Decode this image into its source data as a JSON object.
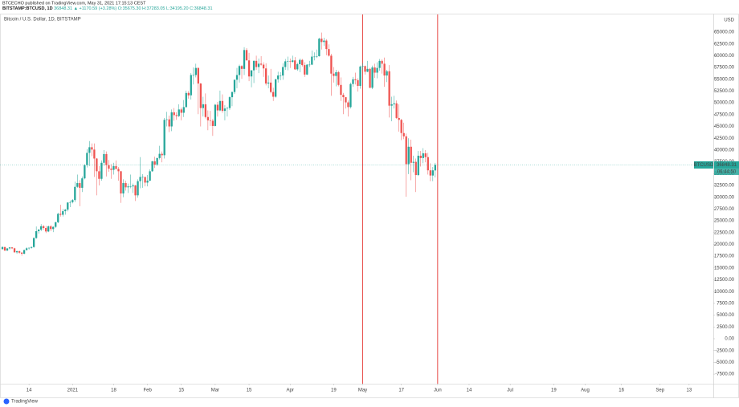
{
  "header": {
    "published": "BTCECHO published on TradingView.com, May 31, 2021 17:15:13 CEST",
    "symbol": "BITSTAMP:BTCUSD, 1D",
    "last": "36848.31",
    "arrow": "▲",
    "change": "+1170.59 (+3.28%)",
    "ohlc": "O:35675.30 H:37283.05 L:34195.20 C:36848.31"
  },
  "footer": {
    "brand": "TradingView"
  },
  "chart_data": {
    "type": "candlestick",
    "title": "Bitcoin / U.S. Dollar, 1D, BITSTAMP",
    "y_axis_unit": "USD",
    "up_color": "#26a69a",
    "down_color": "#ef5350",
    "price_label": {
      "symbol": "BTCUSD",
      "countdown": "06:44:50",
      "color": "#26a69a"
    },
    "vlines": {
      "x": [
        "2021-05-01",
        "2021-06-01"
      ],
      "color": "#e53935"
    },
    "x": [
      "2020-12-03",
      "2020-12-04",
      "2020-12-05",
      "2020-12-06",
      "2020-12-07",
      "2020-12-08",
      "2020-12-09",
      "2020-12-10",
      "2020-12-11",
      "2020-12-12",
      "2020-12-13",
      "2020-12-14",
      "2020-12-15",
      "2020-12-16",
      "2020-12-17",
      "2020-12-18",
      "2020-12-19",
      "2020-12-20",
      "2020-12-21",
      "2020-12-22",
      "2020-12-23",
      "2020-12-24",
      "2020-12-25",
      "2020-12-26",
      "2020-12-27",
      "2020-12-28",
      "2020-12-29",
      "2020-12-30",
      "2020-12-31",
      "2021-01-01",
      "2021-01-02",
      "2021-01-03",
      "2021-01-04",
      "2021-01-05",
      "2021-01-06",
      "2021-01-07",
      "2021-01-08",
      "2021-01-09",
      "2021-01-10",
      "2021-01-11",
      "2021-01-12",
      "2021-01-13",
      "2021-01-14",
      "2021-01-15",
      "2021-01-16",
      "2021-01-17",
      "2021-01-18",
      "2021-01-19",
      "2021-01-20",
      "2021-01-21",
      "2021-01-22",
      "2021-01-23",
      "2021-01-24",
      "2021-01-25",
      "2021-01-26",
      "2021-01-27",
      "2021-01-28",
      "2021-01-29",
      "2021-01-30",
      "2021-01-31",
      "2021-02-01",
      "2021-02-02",
      "2021-02-03",
      "2021-02-04",
      "2021-02-05",
      "2021-02-06",
      "2021-02-07",
      "2021-02-08",
      "2021-02-09",
      "2021-02-10",
      "2021-02-11",
      "2021-02-12",
      "2021-02-13",
      "2021-02-14",
      "2021-02-15",
      "2021-02-16",
      "2021-02-17",
      "2021-02-18",
      "2021-02-19",
      "2021-02-20",
      "2021-02-21",
      "2021-02-22",
      "2021-02-23",
      "2021-02-24",
      "2021-02-25",
      "2021-02-26",
      "2021-02-27",
      "2021-02-28",
      "2021-03-01",
      "2021-03-02",
      "2021-03-03",
      "2021-03-04",
      "2021-03-05",
      "2021-03-06",
      "2021-03-07",
      "2021-03-08",
      "2021-03-09",
      "2021-03-10",
      "2021-03-11",
      "2021-03-12",
      "2021-03-13",
      "2021-03-14",
      "2021-03-15",
      "2021-03-16",
      "2021-03-17",
      "2021-03-18",
      "2021-03-19",
      "2021-03-20",
      "2021-03-21",
      "2021-03-22",
      "2021-03-23",
      "2021-03-24",
      "2021-03-25",
      "2021-03-26",
      "2021-03-27",
      "2021-03-28",
      "2021-03-29",
      "2021-03-30",
      "2021-03-31",
      "2021-04-01",
      "2021-04-02",
      "2021-04-03",
      "2021-04-04",
      "2021-04-05",
      "2021-04-06",
      "2021-04-07",
      "2021-04-08",
      "2021-04-09",
      "2021-04-10",
      "2021-04-11",
      "2021-04-12",
      "2021-04-13",
      "2021-04-14",
      "2021-04-15",
      "2021-04-16",
      "2021-04-17",
      "2021-04-18",
      "2021-04-19",
      "2021-04-20",
      "2021-04-21",
      "2021-04-22",
      "2021-04-23",
      "2021-04-24",
      "2021-04-25",
      "2021-04-26",
      "2021-04-27",
      "2021-04-28",
      "2021-04-29",
      "2021-04-30",
      "2021-05-01",
      "2021-05-02",
      "2021-05-03",
      "2021-05-04",
      "2021-05-05",
      "2021-05-06",
      "2021-05-07",
      "2021-05-08",
      "2021-05-09",
      "2021-05-10",
      "2021-05-11",
      "2021-05-12",
      "2021-05-13",
      "2021-05-14",
      "2021-05-15",
      "2021-05-16",
      "2021-05-17",
      "2021-05-18",
      "2021-05-19",
      "2021-05-20",
      "2021-05-21",
      "2021-05-22",
      "2021-05-23",
      "2021-05-24",
      "2021-05-25",
      "2021-05-26",
      "2021-05-27",
      "2021-05-28",
      "2021-05-29",
      "2021-05-30",
      "2021-05-31"
    ],
    "open": [
      19000,
      19440,
      18700,
      19150,
      19360,
      19170,
      18320,
      18550,
      18250,
      18030,
      18800,
      19170,
      19270,
      19440,
      21350,
      22800,
      23130,
      23850,
      23480,
      22740,
      23820,
      23250,
      23720,
      24700,
      26480,
      26280,
      27040,
      27370,
      28880,
      28950,
      29400,
      32200,
      33000,
      32000,
      34000,
      36800,
      39400,
      40600,
      40100,
      38200,
      35500,
      33900,
      37300,
      39150,
      36800,
      36050,
      35800,
      36600,
      36000,
      35500,
      30800,
      33000,
      32100,
      32300,
      32300,
      32500,
      30400,
      33400,
      34300,
      34300,
      33100,
      33500,
      35500,
      37600,
      36900,
      38300,
      39200,
      38900,
      46400,
      46500,
      45000,
      48000,
      47400,
      47200,
      48600,
      47900,
      49100,
      52100,
      51600,
      55900,
      55900,
      57400,
      54100,
      48900,
      49700,
      47000,
      46300,
      46200,
      45100,
      49600,
      48400,
      50400,
      48300,
      48800,
      48900,
      51200,
      52300,
      54900,
      55900,
      57800,
      57200,
      61200,
      59000,
      55600,
      56900,
      58900,
      57600,
      58300,
      58100,
      57300,
      54100,
      54300,
      52300,
      51300,
      55000,
      55800,
      55800,
      57600,
      58800,
      58800,
      58700,
      59000,
      57100,
      58200,
      59100,
      58000,
      56000,
      58100,
      58100,
      59800,
      59800,
      59900,
      63600,
      62900,
      63200,
      61400,
      60000,
      56200,
      55700,
      56500,
      53800,
      51700,
      51200,
      50100,
      49100,
      54000,
      55000,
      54800,
      53600,
      57700,
      57800,
      56600,
      57200,
      53200,
      57500,
      56400,
      57400,
      58900,
      58300,
      55800,
      56700,
      49400,
      49700,
      49900,
      46800,
      46400,
      43600,
      42900,
      37000,
      40700,
      37300,
      37500,
      34700,
      38800,
      38300,
      39300,
      38500,
      35700,
      34600,
      35675.3
    ],
    "high": [
      19600,
      19500,
      19200,
      19400,
      19400,
      19300,
      18700,
      18700,
      18400,
      18900,
      19400,
      19350,
      19550,
      21500,
      23800,
      23300,
      24300,
      24100,
      23900,
      24000,
      24100,
      23800,
      24800,
      26700,
      28400,
      27500,
      27500,
      28900,
      29300,
      29600,
      33300,
      34800,
      33600,
      34400,
      37000,
      40200,
      41900,
      41400,
      41400,
      38300,
      36600,
      37800,
      40000,
      39700,
      37900,
      37000,
      37300,
      37800,
      36400,
      35600,
      33800,
      33500,
      32900,
      34800,
      32900,
      32600,
      33800,
      38500,
      34900,
      34300,
      34700,
      35900,
      37700,
      38600,
      38400,
      40900,
      39700,
      46800,
      48100,
      47300,
      48600,
      48900,
      48000,
      49700,
      49000,
      50600,
      52600,
      52500,
      56300,
      57500,
      58300,
      57500,
      54200,
      51300,
      52000,
      48400,
      48300,
      46600,
      49800,
      50200,
      52600,
      51800,
      49500,
      49200,
      51400,
      52400,
      54900,
      57400,
      58100,
      58000,
      61800,
      61600,
      60600,
      56900,
      59000,
      60000,
      59400,
      59900,
      58600,
      58400,
      55800,
      57200,
      53200,
      55100,
      56600,
      56500,
      58400,
      59300,
      59800,
      59400,
      60000,
      59700,
      58500,
      59400,
      59300,
      58600,
      58200,
      58900,
      61100,
      60700,
      61300,
      63800,
      64900,
      63800,
      63500,
      62400,
      60400,
      57600,
      57000,
      56800,
      55400,
      52100,
      51100,
      50500,
      54300,
      55500,
      56400,
      55200,
      57900,
      58400,
      57900,
      58900,
      57400,
      57900,
      58300,
      58600,
      59300,
      59200,
      59600,
      57000,
      58000,
      51300,
      51500,
      50500,
      49700,
      46600,
      45800,
      43500,
      42500,
      42200,
      38800,
      38200,
      39800,
      39800,
      40400,
      40000,
      39400,
      37200,
      36400,
      37283.05
    ],
    "low": [
      18900,
      18600,
      18600,
      18900,
      19000,
      18250,
      18000,
      18000,
      17600,
      17900,
      18700,
      18900,
      19100,
      19300,
      21200,
      22300,
      22800,
      23100,
      22400,
      22600,
      22800,
      22600,
      23500,
      24500,
      25900,
      25900,
      26300,
      27000,
      27900,
      28700,
      29000,
      32000,
      28100,
      31100,
      33800,
      36300,
      36600,
      38700,
      34300,
      30400,
      32500,
      33500,
      36700,
      34400,
      35400,
      33900,
      34800,
      35900,
      33500,
      28800,
      30000,
      31400,
      30900,
      31900,
      30900,
      29200,
      29900,
      31900,
      32000,
      32300,
      32300,
      33400,
      35400,
      36200,
      36600,
      38000,
      37400,
      38200,
      45000,
      43800,
      44000,
      46200,
      46400,
      47000,
      46300,
      47000,
      49000,
      50900,
      50700,
      53900,
      55400,
      47600,
      45000,
      47100,
      46700,
      44200,
      45100,
      43000,
      45000,
      47100,
      48200,
      47900,
      46300,
      47100,
      48500,
      49300,
      51900,
      53100,
      54300,
      55100,
      55900,
      59000,
      54600,
      53300,
      54200,
      57000,
      56300,
      57900,
      55500,
      53700,
      53100,
      52000,
      50400,
      51100,
      54300,
      54800,
      54900,
      57000,
      56900,
      57400,
      58500,
      57000,
      56800,
      56500,
      57700,
      55500,
      55900,
      57600,
      58000,
      59000,
      59500,
      59800,
      61300,
      62100,
      60100,
      59800,
      51500,
      54300,
      53500,
      53500,
      50400,
      47600,
      48800,
      47100,
      48800,
      53400,
      53900,
      52400,
      53000,
      57000,
      56000,
      56500,
      53100,
      52900,
      55300,
      55200,
      56800,
      56200,
      53400,
      54400,
      46900,
      46100,
      48800,
      46600,
      43900,
      42100,
      42300,
      30100,
      34900,
      33600,
      35300,
      31100,
      34500,
      36500,
      37200,
      37400,
      34800,
      33400,
      33400,
      34195.2
    ],
    "close": [
      19440,
      18700,
      19150,
      19360,
      19170,
      18320,
      18550,
      18250,
      18030,
      18800,
      19170,
      19270,
      19440,
      21350,
      22800,
      23130,
      23850,
      23480,
      22740,
      23820,
      23250,
      23720,
      24700,
      26480,
      26280,
      27040,
      27370,
      28880,
      28950,
      29400,
      32200,
      33000,
      32000,
      34000,
      36800,
      39400,
      40600,
      40100,
      38200,
      35500,
      33900,
      37300,
      39150,
      36800,
      36050,
      35800,
      36600,
      36000,
      35500,
      30800,
      33000,
      32100,
      32300,
      32300,
      32500,
      30400,
      33400,
      34300,
      34300,
      33100,
      33500,
      35500,
      37600,
      36900,
      38300,
      39200,
      38900,
      46400,
      46500,
      45000,
      48000,
      47400,
      47200,
      48600,
      47900,
      49100,
      52100,
      51600,
      55900,
      55900,
      57400,
      54100,
      48900,
      49700,
      47000,
      46300,
      46200,
      45100,
      49600,
      48400,
      50400,
      48300,
      48800,
      48900,
      51200,
      52300,
      54900,
      55900,
      57800,
      57200,
      61200,
      59000,
      55600,
      56900,
      58900,
      57600,
      58300,
      58100,
      57300,
      54100,
      54300,
      52300,
      51300,
      55000,
      55800,
      55800,
      57600,
      58800,
      58800,
      58700,
      59000,
      57100,
      58200,
      59100,
      58000,
      56000,
      58100,
      58100,
      59800,
      59800,
      59900,
      63600,
      62900,
      63200,
      61400,
      60000,
      56200,
      55700,
      56500,
      53800,
      51700,
      51200,
      50100,
      49100,
      54000,
      55000,
      54800,
      53600,
      57700,
      57800,
      56600,
      57200,
      53200,
      57500,
      56400,
      57400,
      58900,
      58300,
      55800,
      56700,
      49400,
      49700,
      49900,
      46800,
      46400,
      43600,
      42900,
      37000,
      40700,
      37300,
      37500,
      34700,
      38800,
      38300,
      39300,
      38500,
      35700,
      34600,
      35700,
      36848.31
    ],
    "xlim": [
      "2020-12-02",
      "2021-09-23"
    ],
    "xticks": [
      {
        "value": "2020-12-14",
        "label": "14"
      },
      {
        "value": "2021-01-01",
        "label": "2021"
      },
      {
        "value": "2021-01-18",
        "label": "18"
      },
      {
        "value": "2021-02-01",
        "label": "Feb"
      },
      {
        "value": "2021-02-15",
        "label": "15"
      },
      {
        "value": "2021-03-01",
        "label": "Mar"
      },
      {
        "value": "2021-03-15",
        "label": "15"
      },
      {
        "value": "2021-04-01",
        "label": "Apr"
      },
      {
        "value": "2021-04-19",
        "label": "19"
      },
      {
        "value": "2021-05-01",
        "label": "May"
      },
      {
        "value": "2021-05-17",
        "label": "17"
      },
      {
        "value": "2021-06-01",
        "label": "Jun"
      },
      {
        "value": "2021-06-14",
        "label": "14"
      },
      {
        "value": "2021-07-01",
        "label": "Jul"
      },
      {
        "value": "2021-07-19",
        "label": "19"
      },
      {
        "value": "2021-08-01",
        "label": "Aug"
      },
      {
        "value": "2021-08-16",
        "label": "16"
      },
      {
        "value": "2021-09-01",
        "label": "Sep"
      },
      {
        "value": "2021-09-13",
        "label": "13"
      }
    ],
    "ylim": [
      -9530,
      68740
    ],
    "yticks": [
      {
        "value": -7500,
        "label": "-7500.00"
      },
      {
        "value": -5000,
        "label": "-5000.00"
      },
      {
        "value": -2500,
        "label": "-2500.00"
      },
      {
        "value": 0,
        "label": "0.00"
      },
      {
        "value": 2500,
        "label": "2500.00"
      },
      {
        "value": 5000,
        "label": "5000.00"
      },
      {
        "value": 7500,
        "label": "7500.00"
      },
      {
        "value": 10000,
        "label": "10000.00"
      },
      {
        "value": 12500,
        "label": "12500.00"
      },
      {
        "value": 15000,
        "label": "15000.00"
      },
      {
        "value": 17500,
        "label": "17500.00"
      },
      {
        "value": 20000,
        "label": "20000.00"
      },
      {
        "value": 22500,
        "label": "22500.00"
      },
      {
        "value": 25000,
        "label": "25000.00"
      },
      {
        "value": 27500,
        "label": "27500.00"
      },
      {
        "value": 30000,
        "label": "30000.00"
      },
      {
        "value": 32500,
        "label": "32500.00"
      },
      {
        "value": 35000,
        "label": "35000.00"
      },
      {
        "value": 37500,
        "label": "37500.00"
      },
      {
        "value": 40000,
        "label": "40000.00"
      },
      {
        "value": 42500,
        "label": "42500.00"
      },
      {
        "value": 45000,
        "label": "45000.00"
      },
      {
        "value": 47500,
        "label": "47500.00"
      },
      {
        "value": 50000,
        "label": "50000.00"
      },
      {
        "value": 52500,
        "label": "52500.00"
      },
      {
        "value": 55000,
        "label": "55000.00"
      },
      {
        "value": 57500,
        "label": "57500.00"
      },
      {
        "value": 60000,
        "label": "60000.00"
      },
      {
        "value": 62500,
        "label": "62500.00"
      },
      {
        "value": 65000,
        "label": "65000.00"
      }
    ]
  }
}
